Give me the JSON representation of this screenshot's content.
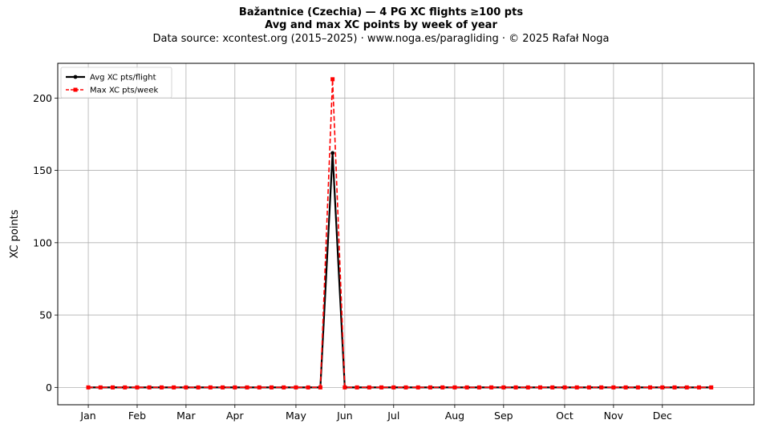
{
  "chart_data": {
    "type": "line",
    "title": "Bažantnice (Czechia)  —  4 PG XC flights ≥100 pts",
    "subtitle": "Avg and max XC points by week of year",
    "source": "Data source: xcontest.org (2015–2025)  ·  www.noga.es/paragliding  ·  © 2025 Rafał Noga",
    "xlabel": "",
    "ylabel": "XC points",
    "xlim": [
      -2.5,
      54.5
    ],
    "ylim": [
      -12,
      224
    ],
    "yticks": [
      0,
      50,
      100,
      150,
      200
    ],
    "month_ticks": [
      {
        "label": "Jan",
        "week": 0
      },
      {
        "label": "Feb",
        "week": 4
      },
      {
        "label": "Mar",
        "week": 8
      },
      {
        "label": "Apr",
        "week": 12
      },
      {
        "label": "May",
        "week": 17
      },
      {
        "label": "Jun",
        "week": 21
      },
      {
        "label": "Jul",
        "week": 25
      },
      {
        "label": "Aug",
        "week": 30
      },
      {
        "label": "Sep",
        "week": 34
      },
      {
        "label": "Oct",
        "week": 39
      },
      {
        "label": "Nov",
        "week": 43
      },
      {
        "label": "Dec",
        "week": 47
      }
    ],
    "grid": true,
    "legend_position": "top-left",
    "x": [
      0,
      1,
      2,
      3,
      4,
      5,
      6,
      7,
      8,
      9,
      10,
      11,
      12,
      13,
      14,
      15,
      16,
      17,
      18,
      19,
      20,
      21,
      22,
      23,
      24,
      25,
      26,
      27,
      28,
      29,
      30,
      31,
      32,
      33,
      34,
      35,
      36,
      37,
      38,
      39,
      40,
      41,
      42,
      43,
      44,
      45,
      46,
      47,
      48,
      49,
      50,
      51
    ],
    "series": [
      {
        "name": "Avg XC pts/flight",
        "color": "#000000",
        "style": "solid-circle",
        "values": [
          0,
          0,
          0,
          0,
          0,
          0,
          0,
          0,
          0,
          0,
          0,
          0,
          0,
          0,
          0,
          0,
          0,
          0,
          0,
          0,
          162,
          0,
          0,
          0,
          0,
          0,
          0,
          0,
          0,
          0,
          0,
          0,
          0,
          0,
          0,
          0,
          0,
          0,
          0,
          0,
          0,
          0,
          0,
          0,
          0,
          0,
          0,
          0,
          0,
          0,
          0,
          0
        ]
      },
      {
        "name": "Max XC pts/week",
        "color": "#ff0000",
        "style": "dashed-square",
        "values": [
          0,
          0,
          0,
          0,
          0,
          0,
          0,
          0,
          0,
          0,
          0,
          0,
          0,
          0,
          0,
          0,
          0,
          0,
          0,
          0,
          213,
          0,
          0,
          0,
          0,
          0,
          0,
          0,
          0,
          0,
          0,
          0,
          0,
          0,
          0,
          0,
          0,
          0,
          0,
          0,
          0,
          0,
          0,
          0,
          0,
          0,
          0,
          0,
          0,
          0,
          0,
          0
        ]
      }
    ]
  }
}
